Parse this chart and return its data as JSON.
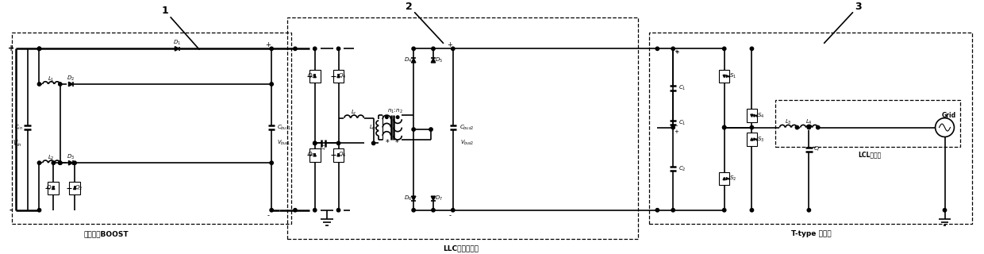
{
  "fig_w": 12.4,
  "fig_h": 3.2,
  "dpi": 100,
  "bg": "#ffffff",
  "s1_label": "交错并联BOOST",
  "s2_label": "LLC谐振变换器",
  "s3_label": "T-type 逆变器",
  "lcl_label": "LCL滤波器",
  "n1": "1",
  "n2": "2",
  "n3": "3"
}
